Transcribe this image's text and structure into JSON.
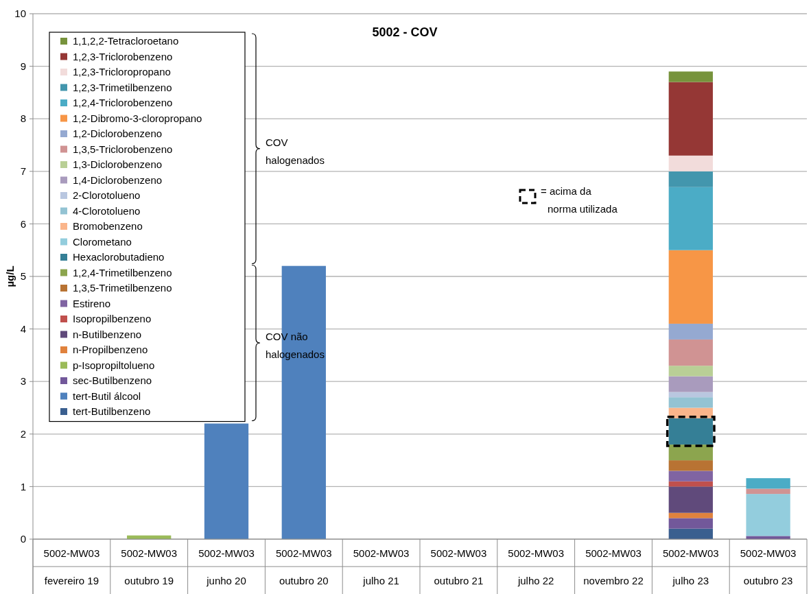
{
  "chart_data": {
    "type": "bar",
    "title": "5002 - COV",
    "ylabel": "µg/L",
    "stacked": true,
    "grid": "y",
    "legend": "top left",
    "ylim": [
      0,
      10
    ],
    "yticks": [
      0,
      1,
      2,
      3,
      4,
      5,
      6,
      7,
      8,
      9,
      10
    ],
    "categories": [
      "5002-MW03\nfevereiro 19",
      "5002-MW03\noutubro 19",
      "5002-MW03\njunho 20",
      "5002-MW03\noutubro 20",
      "5002-MW03\njulho 21",
      "5002-MW03\noutubro 21",
      "5002-MW03\njulho 22",
      "5002-MW03\nnovembro 22",
      "5002-MW03\njulho 23",
      "5002-MW03\noutubro 23"
    ],
    "annotations": [
      "COV halogenados",
      "COV não halogenados",
      "= acima da norma utilizada"
    ],
    "series": [
      {
        "name": "tert-Butilbenzeno",
        "color": "#3a5f8f",
        "values": [
          null,
          null,
          null,
          null,
          null,
          null,
          null,
          null,
          0.2,
          null
        ]
      },
      {
        "name": "tert-Butil álcool",
        "color": "#4f81bd",
        "values": [
          null,
          null,
          2.2,
          5.2,
          null,
          null,
          null,
          null,
          null,
          null
        ]
      },
      {
        "name": "sec-Butilbenzeno",
        "color": "#72589a",
        "values": [
          null,
          null,
          null,
          null,
          null,
          null,
          null,
          null,
          0.2,
          0.06
        ]
      },
      {
        "name": "p-Isopropiltolueno",
        "color": "#9bbb59",
        "values": [
          null,
          0.07,
          null,
          null,
          null,
          null,
          null,
          null,
          null,
          null
        ]
      },
      {
        "name": "n-Propilbenzeno",
        "color": "#e0823d",
        "values": [
          null,
          null,
          null,
          null,
          null,
          null,
          null,
          null,
          0.1,
          null
        ]
      },
      {
        "name": "n-Butilbenzeno",
        "color": "#604a7b",
        "values": [
          null,
          null,
          null,
          null,
          null,
          null,
          null,
          null,
          0.5,
          null
        ]
      },
      {
        "name": "Isopropilbenzeno",
        "color": "#c0504d",
        "values": [
          null,
          null,
          null,
          null,
          null,
          null,
          null,
          null,
          0.1,
          null
        ]
      },
      {
        "name": "Estireno",
        "color": "#8064a2",
        "values": [
          null,
          null,
          null,
          null,
          null,
          null,
          null,
          null,
          0.2,
          null
        ]
      },
      {
        "name": "1,3,5-Trimetilbenzeno",
        "color": "#b87333",
        "values": [
          null,
          null,
          null,
          null,
          null,
          null,
          null,
          null,
          0.2,
          null
        ]
      },
      {
        "name": "1,2,4-Trimetilbenzeno",
        "color": "#8ca54e",
        "values": [
          null,
          null,
          null,
          null,
          null,
          null,
          null,
          null,
          0.3,
          null
        ]
      },
      {
        "name": "Hexaclorobutadieno",
        "color": "#357f96",
        "values": [
          null,
          null,
          null,
          null,
          null,
          null,
          null,
          null,
          0.5,
          null
        ]
      },
      {
        "name": "Clorometano",
        "color": "#93cddd",
        "values": [
          null,
          null,
          null,
          null,
          null,
          null,
          null,
          null,
          null,
          0.8
        ]
      },
      {
        "name": "Bromobenzeno",
        "color": "#fab58b",
        "values": [
          null,
          null,
          null,
          null,
          null,
          null,
          null,
          null,
          0.2,
          null
        ]
      },
      {
        "name": "4-Clorotolueno",
        "color": "#93c3d3",
        "values": [
          null,
          null,
          null,
          null,
          null,
          null,
          null,
          null,
          0.2,
          null
        ]
      },
      {
        "name": "2-Clorotolueno",
        "color": "#b9c7e0",
        "values": [
          null,
          null,
          null,
          null,
          null,
          null,
          null,
          null,
          0.1,
          null
        ]
      },
      {
        "name": "1,4-Diclorobenzeno",
        "color": "#a99bbd",
        "values": [
          null,
          null,
          null,
          null,
          null,
          null,
          null,
          null,
          0.3,
          null
        ]
      },
      {
        "name": "1,3-Diclorobenzeno",
        "color": "#b9cf96",
        "values": [
          null,
          null,
          null,
          null,
          null,
          null,
          null,
          null,
          0.2,
          null
        ]
      },
      {
        "name": "1,3,5-Triclorobenzeno",
        "color": "#d09393",
        "values": [
          null,
          null,
          null,
          null,
          null,
          null,
          null,
          null,
          0.5,
          0.1
        ]
      },
      {
        "name": "1,2-Diclorobenzeno",
        "color": "#95a9d1",
        "values": [
          null,
          null,
          null,
          null,
          null,
          null,
          null,
          null,
          0.3,
          null
        ]
      },
      {
        "name": "1,2-Dibromo-3-cloropropano",
        "color": "#f79646",
        "values": [
          null,
          null,
          null,
          null,
          null,
          null,
          null,
          null,
          1.4,
          null
        ]
      },
      {
        "name": "1,2,4-Triclorobenzeno",
        "color": "#4bacc6",
        "values": [
          null,
          null,
          null,
          null,
          null,
          null,
          null,
          null,
          1.2,
          0.2
        ]
      },
      {
        "name": "1,2,3-Trimetilbenzeno",
        "color": "#4396ad",
        "values": [
          null,
          null,
          null,
          null,
          null,
          null,
          null,
          null,
          0.3,
          null
        ]
      },
      {
        "name": "1,2,3-Tricloropropano",
        "color": "#f2dcdb",
        "values": [
          null,
          null,
          null,
          null,
          null,
          null,
          null,
          null,
          0.3,
          null
        ]
      },
      {
        "name": "1,2,3-Triclorobenzeno",
        "color": "#953735",
        "values": [
          null,
          null,
          null,
          null,
          null,
          null,
          null,
          null,
          1.4,
          null
        ]
      },
      {
        "name": "1,1,2,2-Tetracloroetano",
        "color": "#77933c",
        "values": [
          null,
          null,
          null,
          null,
          null,
          null,
          null,
          null,
          0.2,
          null
        ]
      }
    ]
  }
}
